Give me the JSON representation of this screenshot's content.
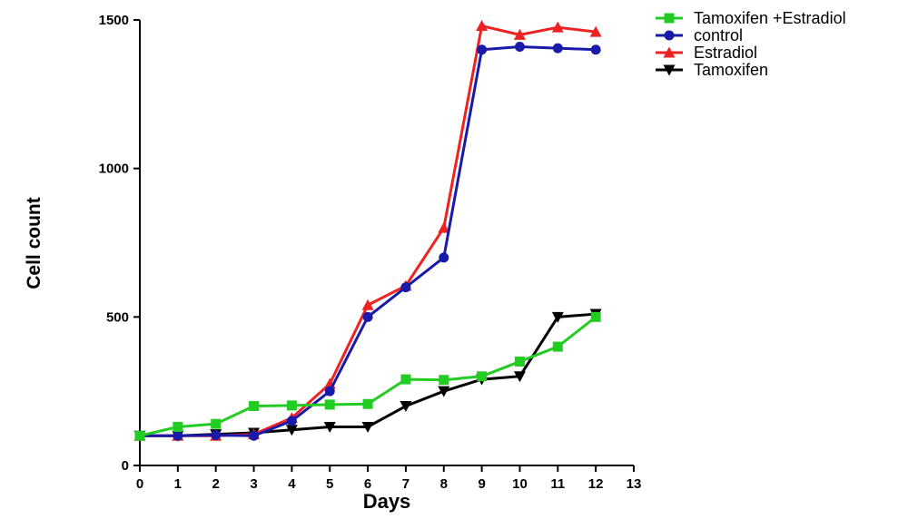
{
  "chart_data": {
    "type": "line",
    "xlabel": "Days",
    "ylabel": "Cell count",
    "xlim": [
      0,
      13
    ],
    "ylim": [
      0,
      1500
    ],
    "xticks": [
      0,
      1,
      2,
      3,
      4,
      5,
      6,
      7,
      8,
      9,
      10,
      11,
      12,
      13
    ],
    "yticks": [
      0,
      500,
      1000,
      1500
    ],
    "grid": false,
    "legend_position": "top-right",
    "x": [
      0,
      1,
      2,
      3,
      4,
      5,
      6,
      7,
      8,
      9,
      10,
      11,
      12
    ],
    "series": [
      {
        "name": "Tamoxifen +Estradiol",
        "color": "#22cc22",
        "marker": "square",
        "values": [
          100,
          130,
          140,
          200,
          202,
          205,
          207,
          290,
          288,
          300,
          350,
          400,
          500
        ]
      },
      {
        "name": "control",
        "color": "#1a1aaa",
        "marker": "circle",
        "values": [
          100,
          100,
          102,
          100,
          150,
          250,
          500,
          600,
          700,
          1400,
          1410,
          1405,
          1400
        ]
      },
      {
        "name": "Estradiol",
        "color": "#ee2222",
        "marker": "triangle-up",
        "values": [
          100,
          100,
          100,
          105,
          160,
          275,
          540,
          605,
          800,
          1480,
          1450,
          1475,
          1460
        ]
      },
      {
        "name": "Tamoxifen",
        "color": "#000000",
        "marker": "triangle-down",
        "values": [
          100,
          100,
          105,
          110,
          120,
          130,
          130,
          200,
          250,
          290,
          300,
          500,
          510
        ]
      }
    ]
  }
}
